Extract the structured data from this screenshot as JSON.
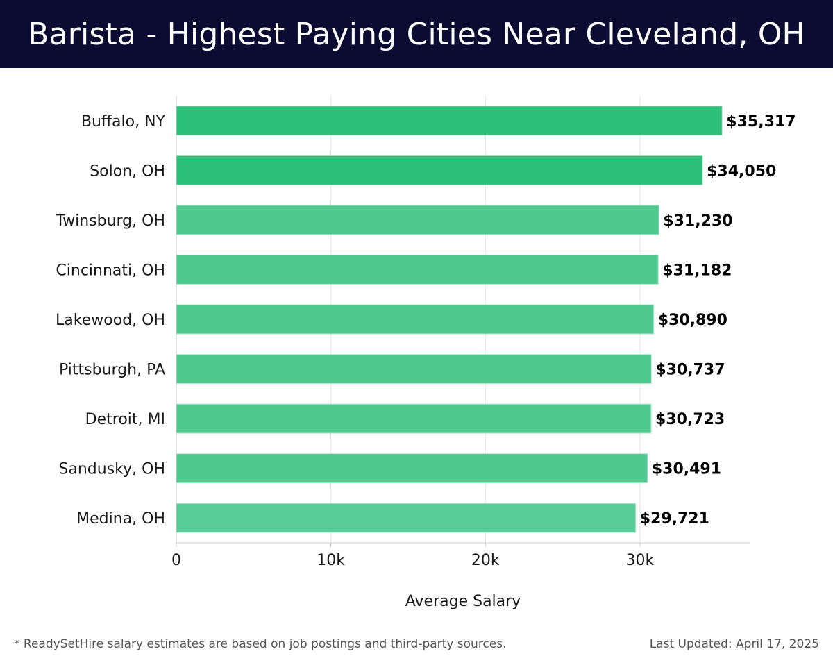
{
  "header": {
    "title": "Barista - Highest Paying Cities Near Cleveland, OH"
  },
  "chart_data": {
    "type": "bar",
    "orientation": "horizontal",
    "title": "Barista - Highest Paying Cities Near Cleveland, OH",
    "categories": [
      "Buffalo, NY",
      "Solon, OH",
      "Twinsburg, OH",
      "Cincinnati, OH",
      "Lakewood, OH",
      "Pittsburgh, PA",
      "Detroit, MI",
      "Sandusky, OH",
      "Medina, OH"
    ],
    "values": [
      35317,
      34050,
      31230,
      31182,
      30890,
      30737,
      30723,
      30491,
      29721
    ],
    "value_labels": [
      "$35,317",
      "$34,050",
      "$31,230",
      "$31,182",
      "$30,890",
      "$30,737",
      "$30,723",
      "$30,491",
      "$29,721"
    ],
    "xlabel": "Average Salary",
    "ylabel": "",
    "xlim": [
      0,
      37100
    ],
    "xticks": [
      0,
      10000,
      20000,
      30000
    ],
    "xtick_labels": [
      "0",
      "10k",
      "20k",
      "30k"
    ],
    "grid": true,
    "colors": {
      "highlight": "#2bbf78",
      "default": "#50c990",
      "last": "#58cc96"
    }
  },
  "footer": {
    "note": "* ReadySetHire salary estimates are based on job postings and third-party sources.",
    "updated": "Last Updated: April 17, 2025"
  }
}
